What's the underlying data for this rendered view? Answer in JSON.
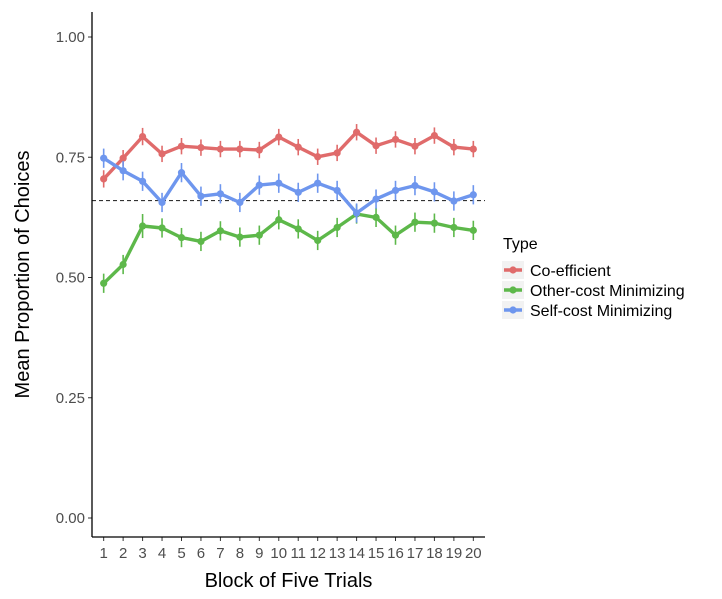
{
  "chart_data": {
    "type": "line",
    "title": "",
    "xlabel": "Block of Five Trials",
    "ylabel": "Mean Proportion of Choices",
    "x": [
      1,
      2,
      3,
      4,
      5,
      6,
      7,
      8,
      9,
      10,
      11,
      12,
      13,
      14,
      15,
      16,
      17,
      18,
      19,
      20
    ],
    "x_tick_labels": [
      "1",
      "2",
      "3",
      "4",
      "5",
      "6",
      "7",
      "8",
      "9",
      "10",
      "11",
      "12",
      "13",
      "14",
      "15",
      "16",
      "17",
      "18",
      "19",
      "20"
    ],
    "ylim": [
      0,
      1
    ],
    "y_ticks": [
      0,
      0.25,
      0.5,
      0.75,
      1
    ],
    "y_tick_labels": [
      "0.00",
      "0.25",
      "0.50",
      "0.75",
      "1.00"
    ],
    "reference_line": {
      "y": 0.66,
      "style": "dashed",
      "color": "#333333"
    },
    "grid": false,
    "legend": {
      "title": "Type",
      "placement": "right"
    },
    "series": [
      {
        "name": "Co-efficient",
        "color": "#e06b6b",
        "values": [
          0.705,
          0.748,
          0.793,
          0.757,
          0.773,
          0.77,
          0.767,
          0.767,
          0.765,
          0.792,
          0.771,
          0.751,
          0.759,
          0.802,
          0.774,
          0.787,
          0.773,
          0.795,
          0.771,
          0.767
        ],
        "errors": [
          0.018,
          0.017,
          0.018,
          0.017,
          0.017,
          0.017,
          0.017,
          0.017,
          0.017,
          0.017,
          0.017,
          0.017,
          0.017,
          0.017,
          0.017,
          0.017,
          0.017,
          0.017,
          0.017,
          0.017
        ]
      },
      {
        "name": "Other-cost Minimizing",
        "color": "#5db84a",
        "values": [
          0.488,
          0.527,
          0.607,
          0.603,
          0.583,
          0.575,
          0.597,
          0.584,
          0.588,
          0.62,
          0.601,
          0.577,
          0.604,
          0.632,
          0.625,
          0.588,
          0.615,
          0.613,
          0.604,
          0.598
        ],
        "errors": [
          0.02,
          0.02,
          0.025,
          0.02,
          0.02,
          0.02,
          0.02,
          0.02,
          0.02,
          0.02,
          0.02,
          0.02,
          0.02,
          0.02,
          0.02,
          0.02,
          0.02,
          0.02,
          0.02,
          0.02
        ]
      },
      {
        "name": "Self-cost Minimizing",
        "color": "#6e96ee",
        "values": [
          0.748,
          0.722,
          0.7,
          0.656,
          0.718,
          0.669,
          0.674,
          0.656,
          0.692,
          0.696,
          0.677,
          0.696,
          0.681,
          0.634,
          0.663,
          0.681,
          0.691,
          0.678,
          0.659,
          0.672
        ],
        "errors": [
          0.02,
          0.02,
          0.02,
          0.02,
          0.02,
          0.02,
          0.02,
          0.02,
          0.02,
          0.02,
          0.02,
          0.02,
          0.02,
          0.02,
          0.02,
          0.02,
          0.02,
          0.02,
          0.02,
          0.02
        ]
      }
    ]
  }
}
